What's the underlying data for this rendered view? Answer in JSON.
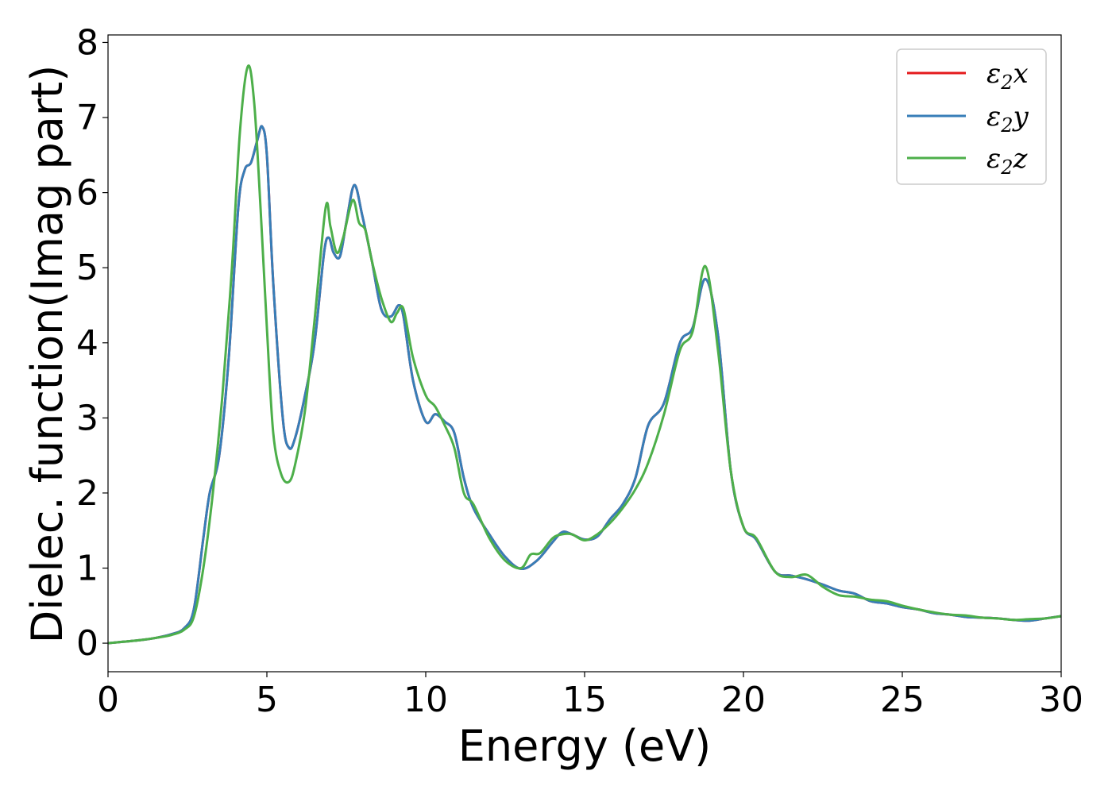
{
  "chart_data": {
    "type": "line",
    "title": "",
    "xlabel": "Energy (eV)",
    "ylabel": "Dielec. function(Imag part)",
    "xlim": [
      0,
      30
    ],
    "ylim": [
      -0.38,
      8.1
    ],
    "xticks": [
      0,
      5,
      10,
      15,
      20,
      25,
      30
    ],
    "yticks": [
      0,
      1,
      2,
      3,
      4,
      5,
      6,
      7,
      8
    ],
    "grid": false,
    "legend_position": "top-right",
    "legend": [
      {
        "symbol": "ε",
        "sub": "2",
        "var": "x",
        "color": "#e41a1c"
      },
      {
        "symbol": "ε",
        "sub": "2",
        "var": "y",
        "color": "#377eb8"
      },
      {
        "symbol": "ε",
        "sub": "2",
        "var": "z",
        "color": "#4daf4a"
      }
    ],
    "series": [
      {
        "color": "#e41a1c",
        "x": [
          0,
          0.5,
          1.0,
          1.5,
          2.0,
          2.4,
          2.7,
          3.0,
          3.2,
          3.5,
          3.8,
          4.1,
          4.3,
          4.5,
          4.7,
          4.85,
          5.0,
          5.2,
          5.5,
          5.7,
          5.9,
          6.2,
          6.5,
          6.8,
          6.95,
          7.1,
          7.3,
          7.5,
          7.75,
          8.0,
          8.3,
          8.6,
          8.9,
          9.15,
          9.3,
          9.6,
          10.0,
          10.3,
          10.6,
          10.9,
          11.2,
          11.5,
          12.0,
          12.5,
          13.0,
          13.5,
          14.0,
          14.3,
          14.6,
          15.0,
          15.4,
          15.8,
          16.2,
          16.6,
          17.0,
          17.5,
          18.0,
          18.4,
          18.8,
          19.2,
          19.6,
          20.0,
          20.4,
          21.0,
          21.5,
          22.0,
          22.5,
          23.0,
          23.5,
          24.0,
          24.5,
          25.0,
          25.5,
          26.0,
          26.5,
          27.0,
          27.5,
          28.0,
          28.5,
          29.0,
          29.5,
          30.0
        ],
        "y": [
          0.0,
          0.02,
          0.04,
          0.07,
          0.12,
          0.2,
          0.45,
          1.4,
          2.0,
          2.5,
          3.8,
          5.8,
          6.3,
          6.4,
          6.7,
          6.88,
          6.5,
          4.8,
          3.0,
          2.6,
          2.75,
          3.3,
          4.0,
          5.2,
          5.4,
          5.2,
          5.15,
          5.6,
          6.1,
          5.7,
          5.1,
          4.45,
          4.35,
          4.5,
          4.35,
          3.5,
          2.95,
          3.05,
          2.95,
          2.8,
          2.2,
          1.8,
          1.45,
          1.15,
          0.99,
          1.1,
          1.35,
          1.48,
          1.45,
          1.38,
          1.42,
          1.65,
          1.85,
          2.2,
          2.9,
          3.2,
          4.0,
          4.2,
          4.85,
          4.1,
          2.3,
          1.55,
          1.38,
          0.95,
          0.9,
          0.85,
          0.78,
          0.7,
          0.66,
          0.56,
          0.53,
          0.48,
          0.45,
          0.4,
          0.38,
          0.35,
          0.34,
          0.33,
          0.31,
          0.3,
          0.33,
          0.36
        ]
      },
      {
        "color": "#377eb8",
        "x": [
          0,
          0.5,
          1.0,
          1.5,
          2.0,
          2.4,
          2.7,
          3.0,
          3.2,
          3.5,
          3.8,
          4.1,
          4.3,
          4.5,
          4.7,
          4.85,
          5.0,
          5.2,
          5.5,
          5.7,
          5.9,
          6.2,
          6.5,
          6.8,
          6.95,
          7.1,
          7.3,
          7.5,
          7.75,
          8.0,
          8.3,
          8.6,
          8.9,
          9.15,
          9.3,
          9.6,
          10.0,
          10.3,
          10.6,
          10.9,
          11.2,
          11.5,
          12.0,
          12.5,
          13.0,
          13.5,
          14.0,
          14.3,
          14.6,
          15.0,
          15.4,
          15.8,
          16.2,
          16.6,
          17.0,
          17.5,
          18.0,
          18.4,
          18.8,
          19.2,
          19.6,
          20.0,
          20.4,
          21.0,
          21.5,
          22.0,
          22.5,
          23.0,
          23.5,
          24.0,
          24.5,
          25.0,
          25.5,
          26.0,
          26.5,
          27.0,
          27.5,
          28.0,
          28.5,
          29.0,
          29.5,
          30.0
        ],
        "y": [
          0.0,
          0.02,
          0.04,
          0.07,
          0.12,
          0.2,
          0.45,
          1.4,
          2.0,
          2.5,
          3.8,
          5.8,
          6.3,
          6.4,
          6.7,
          6.88,
          6.5,
          4.8,
          3.0,
          2.6,
          2.75,
          3.3,
          4.0,
          5.2,
          5.4,
          5.2,
          5.15,
          5.6,
          6.1,
          5.7,
          5.1,
          4.45,
          4.35,
          4.5,
          4.35,
          3.5,
          2.95,
          3.05,
          2.95,
          2.8,
          2.2,
          1.8,
          1.45,
          1.15,
          0.99,
          1.1,
          1.35,
          1.48,
          1.45,
          1.38,
          1.42,
          1.65,
          1.85,
          2.2,
          2.9,
          3.2,
          4.0,
          4.2,
          4.85,
          4.1,
          2.3,
          1.55,
          1.38,
          0.95,
          0.9,
          0.85,
          0.78,
          0.7,
          0.66,
          0.56,
          0.53,
          0.48,
          0.45,
          0.4,
          0.38,
          0.35,
          0.34,
          0.33,
          0.31,
          0.3,
          0.33,
          0.36
        ]
      },
      {
        "color": "#4daf4a",
        "x": [
          0,
          0.5,
          1.0,
          1.5,
          2.0,
          2.4,
          2.7,
          3.0,
          3.3,
          3.6,
          3.9,
          4.15,
          4.4,
          4.6,
          4.8,
          5.0,
          5.2,
          5.45,
          5.7,
          5.9,
          6.2,
          6.5,
          6.85,
          7.0,
          7.2,
          7.4,
          7.7,
          7.9,
          8.1,
          8.3,
          8.6,
          8.9,
          9.1,
          9.3,
          9.6,
          10.0,
          10.3,
          10.6,
          10.9,
          11.2,
          11.5,
          12.0,
          12.5,
          13.0,
          13.3,
          13.6,
          14.0,
          14.3,
          14.6,
          15.0,
          15.4,
          15.8,
          16.2,
          16.6,
          17.0,
          17.5,
          18.0,
          18.4,
          18.8,
          19.2,
          19.6,
          20.0,
          20.4,
          21.0,
          21.5,
          22.0,
          22.5,
          23.0,
          23.5,
          24.0,
          24.5,
          25.0,
          25.5,
          26.0,
          26.5,
          27.0,
          27.5,
          28.0,
          28.5,
          29.0,
          29.5,
          30.0
        ],
        "y": [
          0.0,
          0.02,
          0.04,
          0.07,
          0.11,
          0.18,
          0.35,
          1.0,
          2.0,
          3.3,
          5.0,
          6.8,
          7.68,
          7.2,
          5.8,
          4.2,
          2.8,
          2.25,
          2.15,
          2.4,
          3.1,
          4.3,
          5.8,
          5.55,
          5.2,
          5.4,
          5.9,
          5.6,
          5.5,
          5.1,
          4.6,
          4.28,
          4.4,
          4.45,
          3.8,
          3.3,
          3.15,
          2.9,
          2.6,
          2.0,
          1.85,
          1.4,
          1.1,
          1.0,
          1.18,
          1.2,
          1.4,
          1.45,
          1.45,
          1.37,
          1.45,
          1.6,
          1.8,
          2.05,
          2.4,
          3.05,
          3.9,
          4.15,
          5.02,
          3.9,
          2.3,
          1.55,
          1.4,
          0.95,
          0.88,
          0.91,
          0.75,
          0.64,
          0.62,
          0.58,
          0.56,
          0.5,
          0.45,
          0.41,
          0.38,
          0.37,
          0.34,
          0.33,
          0.31,
          0.32,
          0.33,
          0.36
        ]
      }
    ]
  }
}
